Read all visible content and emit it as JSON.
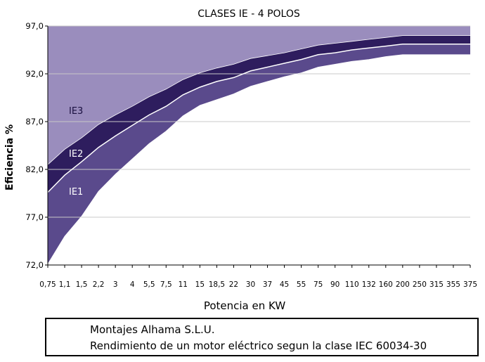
{
  "chart_data": {
    "type": "area",
    "title": "CLASES IE - 4 POLOS",
    "xlabel": "Potencia en KW",
    "ylabel": "Eficiencia %",
    "ylim": [
      72.0,
      97.0
    ],
    "y_ticks": [
      "72,0",
      "77,0",
      "82,0",
      "87,0",
      "92,0",
      "97,0"
    ],
    "y_tick_values": [
      72,
      77,
      82,
      87,
      92,
      97
    ],
    "grid": true,
    "categories": [
      "0,75",
      "1,1",
      "1,5",
      "2,2",
      "3",
      "4",
      "5,5",
      "7,5",
      "11",
      "15",
      "18,5",
      "22",
      "30",
      "37",
      "45",
      "55",
      "75",
      "90",
      "110",
      "132",
      "160",
      "200",
      "250",
      "315",
      "355",
      "375"
    ],
    "series": [
      {
        "name": "IE1",
        "color": "#5a4a8c",
        "values": [
          72.1,
          75.0,
          77.1,
          79.7,
          81.5,
          83.1,
          84.7,
          86.0,
          87.6,
          88.7,
          89.3,
          89.9,
          90.7,
          91.2,
          91.7,
          92.1,
          92.7,
          93.0,
          93.3,
          93.5,
          93.8,
          94.0,
          94.0,
          94.0,
          94.0,
          94.0
        ]
      },
      {
        "name": "IE2",
        "color": "#3a2a78",
        "values": [
          79.6,
          81.4,
          82.8,
          84.3,
          85.5,
          86.6,
          87.7,
          88.6,
          89.8,
          90.6,
          91.2,
          91.6,
          92.3,
          92.7,
          93.1,
          93.5,
          94.0,
          94.2,
          94.5,
          94.7,
          94.9,
          95.1,
          95.1,
          95.1,
          95.1,
          95.1
        ]
      },
      {
        "name": "IE3",
        "color": "#2e1d5e",
        "values": [
          82.5,
          84.1,
          85.3,
          86.7,
          87.7,
          88.6,
          89.6,
          90.4,
          91.4,
          92.1,
          92.6,
          93.0,
          93.6,
          93.9,
          94.2,
          94.6,
          95.0,
          95.2,
          95.4,
          95.6,
          95.8,
          96.0,
          96.0,
          96.0,
          96.0,
          96.0
        ]
      }
    ],
    "region_labels": [
      "IE3",
      "IE2",
      "IE1"
    ],
    "colors": {
      "top_region": "#9a8dbd",
      "boundary_line": "#ffffff",
      "grid": "#c8c8c8",
      "axis": "#000000"
    }
  },
  "caption": {
    "line1": "Montajes Alhama S.L.U.",
    "line2": "Rendimiento de un motor eléctrico segun la clase IEC 60034-30"
  }
}
